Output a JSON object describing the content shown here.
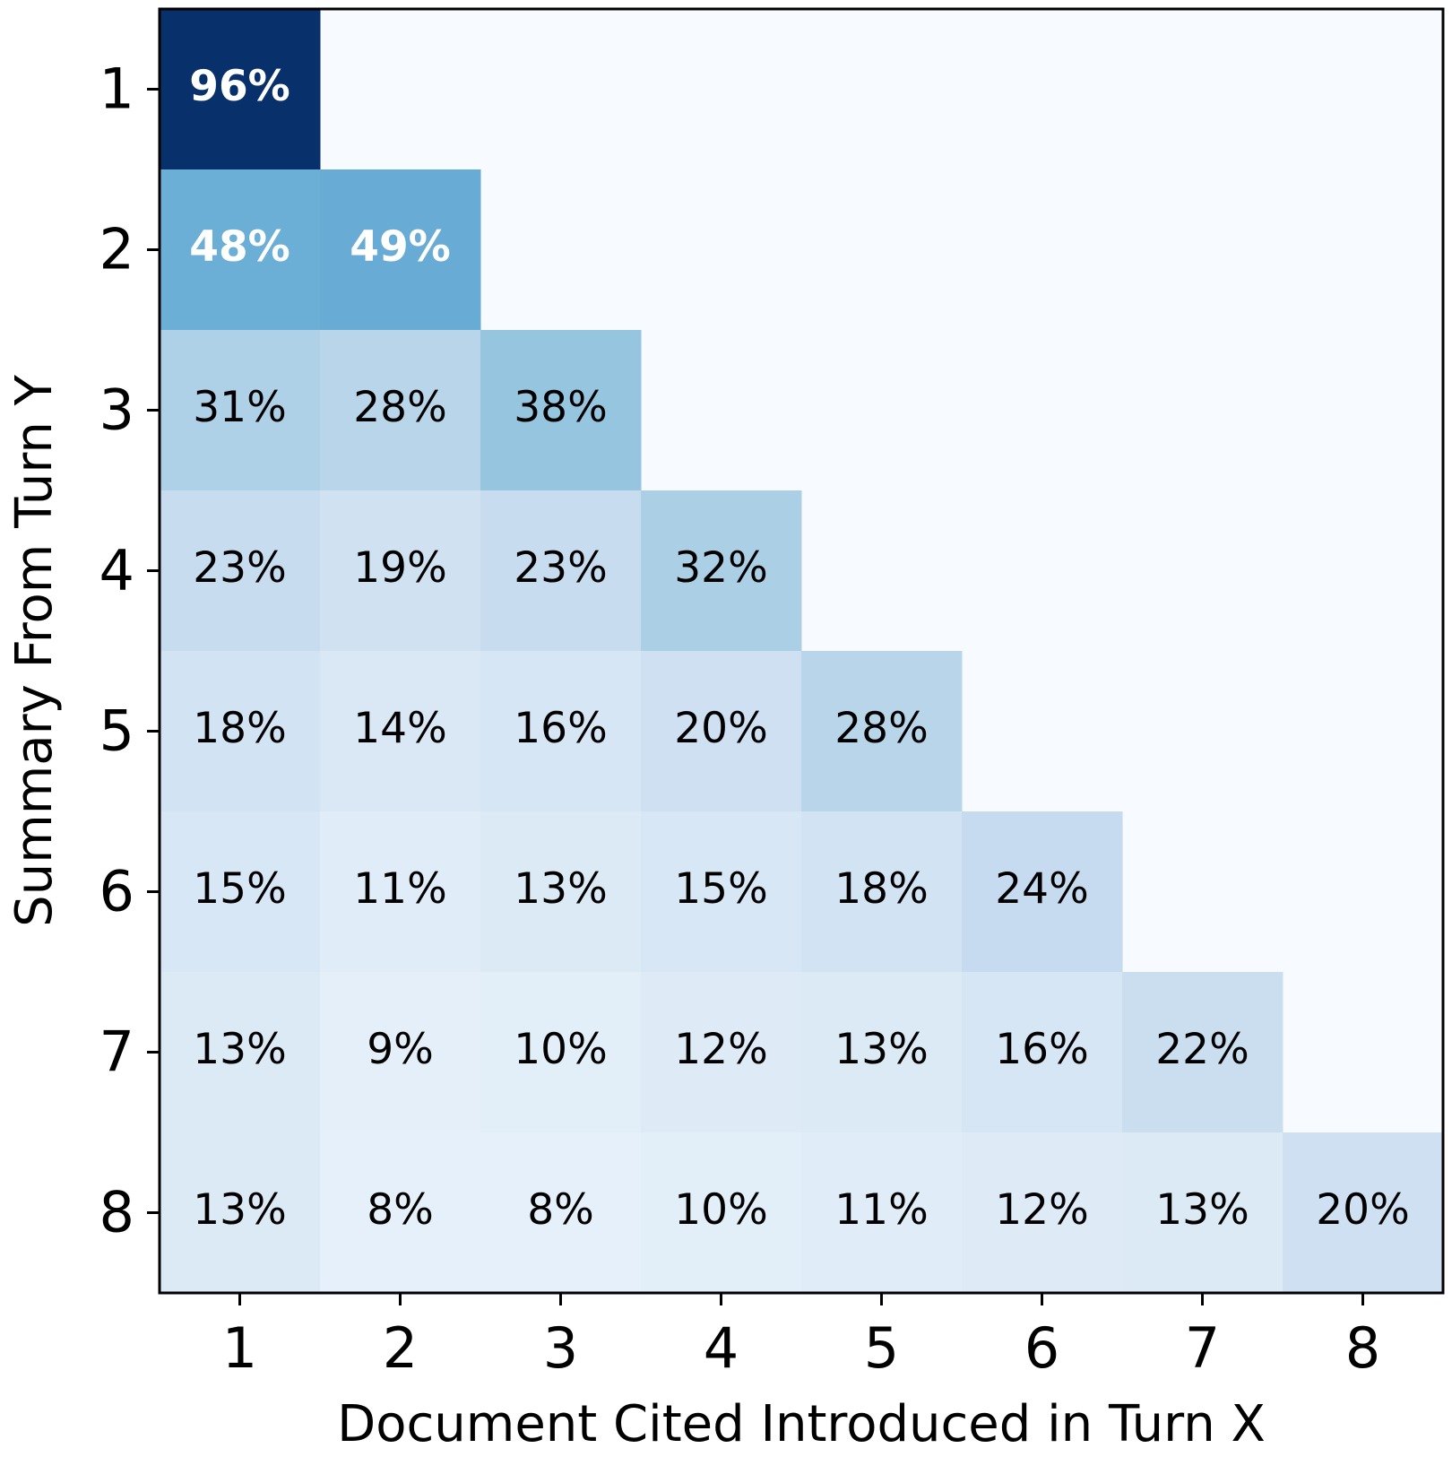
{
  "chart_data": {
    "type": "heatmap",
    "xlabel": "Document Cited Introduced in Turn X",
    "ylabel": "Summary From Turn Y",
    "x_categories": [
      1,
      2,
      3,
      4,
      5,
      6,
      7,
      8
    ],
    "y_categories": [
      1,
      2,
      3,
      4,
      5,
      6,
      7,
      8
    ],
    "cmap": "Blues",
    "values": [
      [
        96,
        null,
        null,
        null,
        null,
        null,
        null,
        null
      ],
      [
        48,
        49,
        null,
        null,
        null,
        null,
        null,
        null
      ],
      [
        31,
        28,
        38,
        null,
        null,
        null,
        null,
        null
      ],
      [
        23,
        19,
        23,
        32,
        null,
        null,
        null,
        null
      ],
      [
        18,
        14,
        16,
        20,
        28,
        null,
        null,
        null
      ],
      [
        15,
        11,
        13,
        15,
        18,
        24,
        null,
        null
      ],
      [
        13,
        9,
        10,
        12,
        13,
        16,
        22,
        null
      ],
      [
        13,
        8,
        8,
        10,
        11,
        12,
        13,
        20
      ]
    ],
    "value_labels": [
      [
        "96%",
        null,
        null,
        null,
        null,
        null,
        null,
        null
      ],
      [
        "48%",
        "49%",
        null,
        null,
        null,
        null,
        null,
        null
      ],
      [
        "31%",
        "28%",
        "38%",
        null,
        null,
        null,
        null,
        null
      ],
      [
        "23%",
        "19%",
        "23%",
        "32%",
        null,
        null,
        null,
        null
      ],
      [
        "18%",
        "14%",
        "16%",
        "20%",
        "28%",
        null,
        null,
        null
      ],
      [
        "15%",
        "11%",
        "13%",
        "15%",
        "18%",
        "24%",
        null,
        null
      ],
      [
        "13%",
        "9%",
        "10%",
        "12%",
        "13%",
        "16%",
        "22%",
        null
      ],
      [
        "13%",
        "8%",
        "8%",
        "10%",
        "11%",
        "12%",
        "13%",
        "20%"
      ]
    ]
  }
}
